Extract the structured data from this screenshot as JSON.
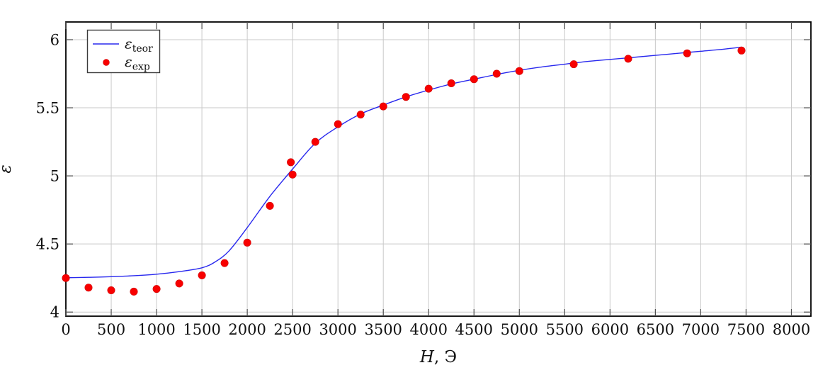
{
  "figure": {
    "background": "#ffffff"
  },
  "chart_data": {
    "type": "line",
    "title": "",
    "xlabel": "H, Э",
    "xlabel_italic": "H",
    "xlabel_regular": ", Э",
    "ylabel": "ε",
    "xlim": [
      0,
      8215
    ],
    "ylim": [
      3.97,
      6.13
    ],
    "x_ticks": [
      0,
      500,
      1000,
      1500,
      2000,
      2500,
      3000,
      3500,
      4000,
      4500,
      5000,
      5500,
      6000,
      6500,
      7000,
      7500,
      8000
    ],
    "y_ticks": [
      4,
      4.5,
      5,
      5.5,
      6
    ],
    "grid": true,
    "colors": {
      "teor_line": "#2828ee",
      "exp_marker": "#f80000",
      "exp_marker_edge": "#d00000",
      "grid": "#c9c9c9",
      "frame": "#000000",
      "tick": "#4d4d4d",
      "legend_border": "#3b3b3b"
    },
    "legend": {
      "position": "top-left",
      "entries": [
        {
          "base": "ε",
          "sub": "teor",
          "marker": "line"
        },
        {
          "base": "ε",
          "sub": "exp",
          "marker": "dot"
        }
      ]
    },
    "series": [
      {
        "name": "eps_teor",
        "type": "line",
        "x": [
          0,
          250,
          500,
          750,
          1000,
          1250,
          1500,
          1650,
          1800,
          2000,
          2250,
          2500,
          2750,
          3000,
          3250,
          3500,
          3750,
          4000,
          4250,
          4500,
          4750,
          5000,
          5250,
          5500,
          5750,
          6000,
          6250,
          6500,
          6750,
          7000,
          7250,
          7450
        ],
        "y": [
          4.252,
          4.255,
          4.26,
          4.267,
          4.278,
          4.297,
          4.325,
          4.37,
          4.45,
          4.62,
          4.85,
          5.05,
          5.24,
          5.36,
          5.455,
          5.52,
          5.58,
          5.63,
          5.675,
          5.71,
          5.745,
          5.775,
          5.8,
          5.82,
          5.84,
          5.855,
          5.87,
          5.885,
          5.9,
          5.915,
          5.93,
          5.945
        ]
      },
      {
        "name": "eps_exp",
        "type": "scatter",
        "x": [
          0,
          250,
          500,
          750,
          1000,
          1250,
          1500,
          1750,
          2000,
          2250,
          2480,
          2500,
          2750,
          3000,
          3250,
          3500,
          3750,
          4000,
          4250,
          4500,
          4750,
          5000,
          5600,
          6200,
          6850,
          7450
        ],
        "y": [
          4.25,
          4.18,
          4.16,
          4.15,
          4.17,
          4.21,
          4.27,
          4.36,
          4.51,
          4.78,
          5.1,
          5.01,
          5.25,
          5.38,
          5.45,
          5.51,
          5.58,
          5.64,
          5.68,
          5.71,
          5.75,
          5.77,
          5.82,
          5.86,
          5.9,
          5.92
        ]
      }
    ]
  }
}
